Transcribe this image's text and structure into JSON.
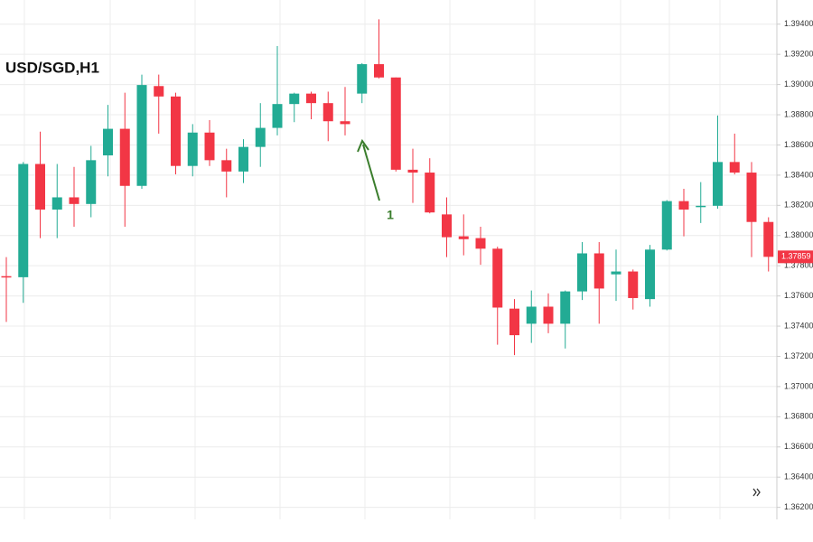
{
  "chart_data": {
    "type": "candlestick",
    "title": "USD/SGD,H1",
    "open": [
      1.37731,
      1.37724,
      1.38474,
      1.38172,
      1.38253,
      1.38209,
      1.38531,
      1.38707,
      1.38329,
      1.3899,
      1.38921,
      1.38461,
      1.38682,
      1.38499,
      1.38424,
      1.38587,
      1.38713,
      1.38871,
      1.3894,
      1.38877,
      1.38757,
      1.3894,
      1.39135,
      1.39047,
      1.38436,
      1.38417,
      1.3814,
      1.37995,
      1.37983,
      1.37913,
      1.37516,
      1.37416,
      1.37529,
      1.37416,
      1.3763,
      1.37882,
      1.37743,
      1.37762,
      1.37579,
      1.37907,
      1.38228,
      1.3819,
      1.38197,
      1.38487,
      1.38417,
      1.3809
    ],
    "high": [
      1.37857,
      1.38487,
      1.38688,
      1.38474,
      1.38455,
      1.38594,
      1.38865,
      1.38946,
      1.39066,
      1.39066,
      1.38946,
      1.38738,
      1.38764,
      1.38575,
      1.38638,
      1.38877,
      1.39255,
      1.38946,
      1.38953,
      1.38953,
      1.38984,
      1.39142,
      1.39432,
      1.39047,
      1.38575,
      1.38512,
      1.38253,
      1.3814,
      1.38058,
      1.37926,
      1.37579,
      1.37636,
      1.37617,
      1.37636,
      1.37957,
      1.37957,
      1.37907,
      1.37775,
      1.37938,
      1.38235,
      1.3831,
      1.38354,
      1.38795,
      1.38675,
      1.38487,
      1.38121
    ],
    "low": [
      1.37428,
      1.37554,
      1.37983,
      1.37983,
      1.38058,
      1.38121,
      1.38392,
      1.38058,
      1.3831,
      1.38675,
      1.38405,
      1.38392,
      1.38461,
      1.38253,
      1.38348,
      1.38455,
      1.38663,
      1.38751,
      1.3877,
      1.38625,
      1.38663,
      1.38877,
      1.39041,
      1.38424,
      1.38216,
      1.38147,
      1.37857,
      1.37869,
      1.37806,
      1.37277,
      1.37208,
      1.37289,
      1.37353,
      1.37252,
      1.37573,
      1.37416,
      1.37567,
      1.3751,
      1.37529,
      1.37901,
      1.37995,
      1.38083,
      1.38178,
      1.38405,
      1.37857,
      1.37762
    ],
    "close": [
      1.37725,
      1.38474,
      1.38172,
      1.38253,
      1.38209,
      1.38499,
      1.38707,
      1.38329,
      1.38997,
      1.38921,
      1.38461,
      1.38682,
      1.38499,
      1.38424,
      1.38587,
      1.38713,
      1.38871,
      1.3894,
      1.38877,
      1.38757,
      1.38738,
      1.39135,
      1.39047,
      1.38436,
      1.38417,
      1.38153,
      1.37989,
      1.37976,
      1.37913,
      1.37523,
      1.3734,
      1.37529,
      1.37416,
      1.3763,
      1.37882,
      1.37649,
      1.37762,
      1.37586,
      1.37907,
      1.38228,
      1.38172,
      1.38197,
      1.38487,
      1.38417,
      1.3809,
      1.37859
    ],
    "up_color": "#22ab94",
    "down_color": "#f23645",
    "ylim": [
      1.3612,
      1.3956
    ],
    "yticks": [
      {
        "value": 1.362,
        "label": "1.36200"
      },
      {
        "value": 1.364,
        "label": "1.36400"
      },
      {
        "value": 1.366,
        "label": "1.36600"
      },
      {
        "value": 1.368,
        "label": "1.36800"
      },
      {
        "value": 1.37,
        "label": "1.37000"
      },
      {
        "value": 1.372,
        "label": "1.37200"
      },
      {
        "value": 1.374,
        "label": "1.37400"
      },
      {
        "value": 1.376,
        "label": "1.37600"
      },
      {
        "value": 1.378,
        "label": "1.37800"
      },
      {
        "value": 1.38,
        "label": "1.38000"
      },
      {
        "value": 1.382,
        "label": "1.38200"
      },
      {
        "value": 1.384,
        "label": "1.38400"
      },
      {
        "value": 1.386,
        "label": "1.38600"
      },
      {
        "value": 1.388,
        "label": "1.38800"
      },
      {
        "value": 1.39,
        "label": "1.39000"
      },
      {
        "value": 1.392,
        "label": "1.39200"
      },
      {
        "value": 1.394,
        "label": "1.39400"
      }
    ],
    "last_price": 1.37859,
    "annotation": "1",
    "grid": true
  }
}
